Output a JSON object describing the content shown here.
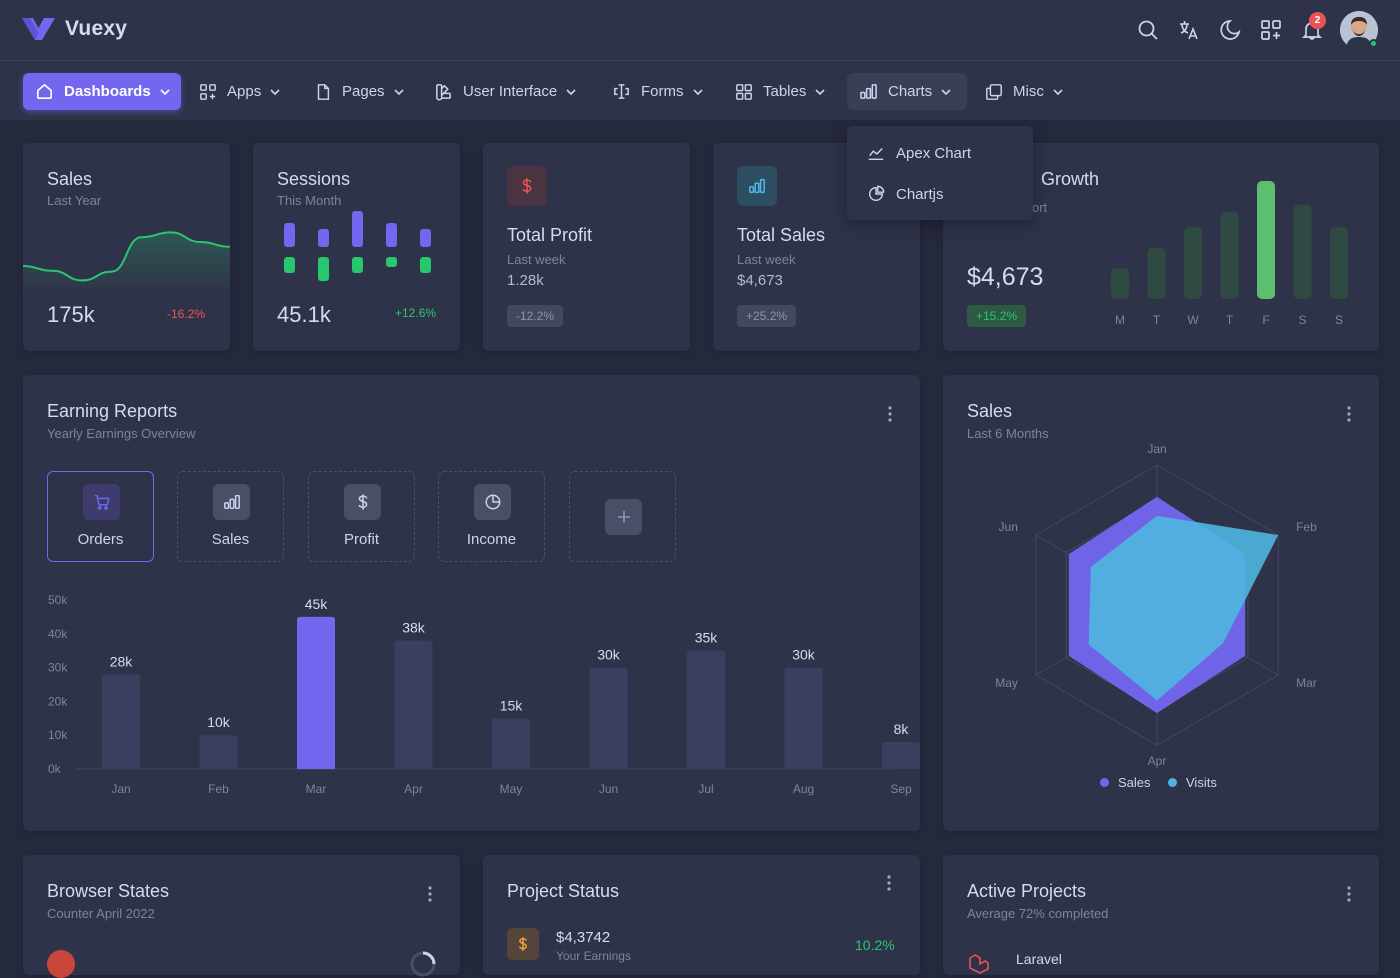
{
  "brand": {
    "name": "Vuexy",
    "accent": "#7367f0"
  },
  "header": {
    "notification_count": "2"
  },
  "nav": {
    "items": [
      {
        "label": "Dashboards",
        "icon": "home-icon"
      },
      {
        "label": "Apps",
        "icon": "grid-plus-icon"
      },
      {
        "label": "Pages",
        "icon": "file-icon"
      },
      {
        "label": "User Interface",
        "icon": "color-swatch-icon"
      },
      {
        "label": "Forms",
        "icon": "cursor-text-icon"
      },
      {
        "label": "Tables",
        "icon": "table-grid-icon"
      },
      {
        "label": "Charts",
        "icon": "chart-bar-icon"
      },
      {
        "label": "Misc",
        "icon": "copy-icon"
      }
    ],
    "charts_dropdown": [
      {
        "label": "Apex Chart",
        "icon": "chart-line-icon"
      },
      {
        "label": "Chartjs",
        "icon": "chart-pie-icon"
      }
    ]
  },
  "cards": {
    "sales": {
      "title": "Sales",
      "subtitle": "Last Year",
      "value": "175k",
      "change": "-16.2%"
    },
    "sessions": {
      "title": "Sessions",
      "subtitle": "This Month",
      "value": "45.1k",
      "change": "+12.6%"
    },
    "profit": {
      "title": "Total Profit",
      "subtitle": "Last week",
      "value": "1.28k",
      "change": "-12.2%"
    },
    "total_sales": {
      "title": "Total Sales",
      "subtitle": "Last week",
      "value": "$4,673",
      "change": "+25.2%"
    },
    "growth": {
      "title_visible": "Growth",
      "subtitle_visible": "ort",
      "value": "$4,673",
      "change": "+15.2%",
      "days": [
        "M",
        "T",
        "W",
        "T",
        "F",
        "S",
        "S"
      ]
    },
    "earning": {
      "title": "Earning Reports",
      "subtitle": "Yearly Earnings Overview",
      "tabs": [
        {
          "label": "Orders",
          "icon": "shopping-cart-icon"
        },
        {
          "label": "Sales",
          "icon": "chart-bar-icon"
        },
        {
          "label": "Profit",
          "icon": "dollar-icon"
        },
        {
          "label": "Income",
          "icon": "chart-pie-icon"
        }
      ]
    },
    "radar": {
      "title": "Sales",
      "subtitle": "Last 6 Months"
    },
    "browser": {
      "title": "Browser States",
      "subtitle": "Counter April 2022"
    },
    "project": {
      "title": "Project Status",
      "amount": "$4,3742",
      "amount_label": "Your Earnings",
      "change": "10.2%"
    },
    "active": {
      "title": "Active Projects",
      "subtitle": "Average 72% completed",
      "first_item": "Laravel"
    }
  },
  "chart_data": [
    {
      "type": "bar",
      "categories": [
        "Jan",
        "Feb",
        "Mar",
        "Apr",
        "May",
        "Jun",
        "Jul",
        "Aug",
        "Sep"
      ],
      "values": [
        28,
        10,
        45,
        38,
        15,
        30,
        35,
        30,
        8
      ],
      "data_labels": [
        "28k",
        "10k",
        "45k",
        "38k",
        "15k",
        "30k",
        "35k",
        "30k",
        "8k"
      ],
      "y_ticks": [
        "0k",
        "10k",
        "20k",
        "30k",
        "40k",
        "50k"
      ],
      "ylim": [
        0,
        50
      ],
      "highlight": "Mar",
      "colors": {
        "bar": "#3b3e5e",
        "highlight": "#7367f0"
      }
    },
    {
      "type": "radar",
      "axes": [
        "Jan",
        "Feb",
        "Mar",
        "Apr",
        "May",
        "Jun"
      ],
      "series": [
        {
          "name": "Sales",
          "values": [
            85,
            80,
            80,
            85,
            80,
            80
          ],
          "color": "#7367f0"
        },
        {
          "name": "Visits",
          "values": [
            70,
            110,
            60,
            75,
            62,
            60
          ],
          "color": "#4fb5e0"
        }
      ],
      "rmax": 110
    },
    {
      "type": "bar",
      "categories": [
        "M",
        "T",
        "W",
        "T",
        "F",
        "S",
        "S"
      ],
      "values": [
        30,
        50,
        70,
        85,
        115,
        92,
        70
      ],
      "highlight": "F",
      "colors": {
        "bar": "#2e4a42",
        "highlight": "#5cbf6f"
      }
    },
    {
      "type": "bar",
      "chart": "sessions",
      "series": [
        {
          "name": "top",
          "values": [
            24,
            18,
            36,
            24,
            18
          ],
          "color": "#7367f0"
        },
        {
          "name": "bottom",
          "values": [
            16,
            24,
            16,
            10,
            16
          ],
          "color": "#28c76f"
        }
      ]
    },
    {
      "type": "area",
      "chart": "sales-trend",
      "values": [
        40,
        34,
        22,
        33,
        76,
        82,
        70,
        64
      ],
      "color": "#28c76f"
    }
  ]
}
